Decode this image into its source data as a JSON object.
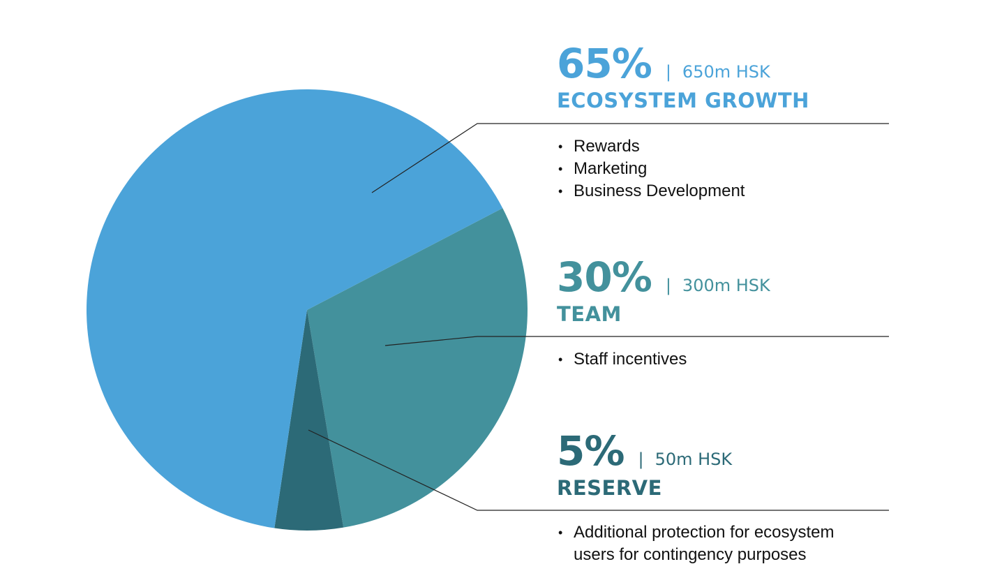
{
  "chart_data": {
    "type": "pie",
    "title": "",
    "slices": [
      {
        "key": "ecosystem",
        "label": "ECOSYSTEM GROWTH",
        "value": 65,
        "percent_label": "65%",
        "amount_label": "650m HSK",
        "color": "#4BA3D9"
      },
      {
        "key": "team",
        "label": "TEAM",
        "value": 30,
        "percent_label": "30%",
        "amount_label": "300m HSK",
        "color": "#43919C"
      },
      {
        "key": "reserve",
        "label": "RESERVE",
        "value": 5,
        "percent_label": "5%",
        "amount_label": "50m HSK",
        "color": "#2C6A77"
      }
    ]
  },
  "separator": "|",
  "bullets": {
    "ecosystem": [
      "Rewards",
      "Marketing",
      "Business Development"
    ],
    "team": [
      "Staff incentives"
    ],
    "reserve": [
      "Additional protection for ecosystem users for contingency purposes"
    ]
  },
  "colors": {
    "line": "#222222",
    "bullet_text": "#111111"
  }
}
